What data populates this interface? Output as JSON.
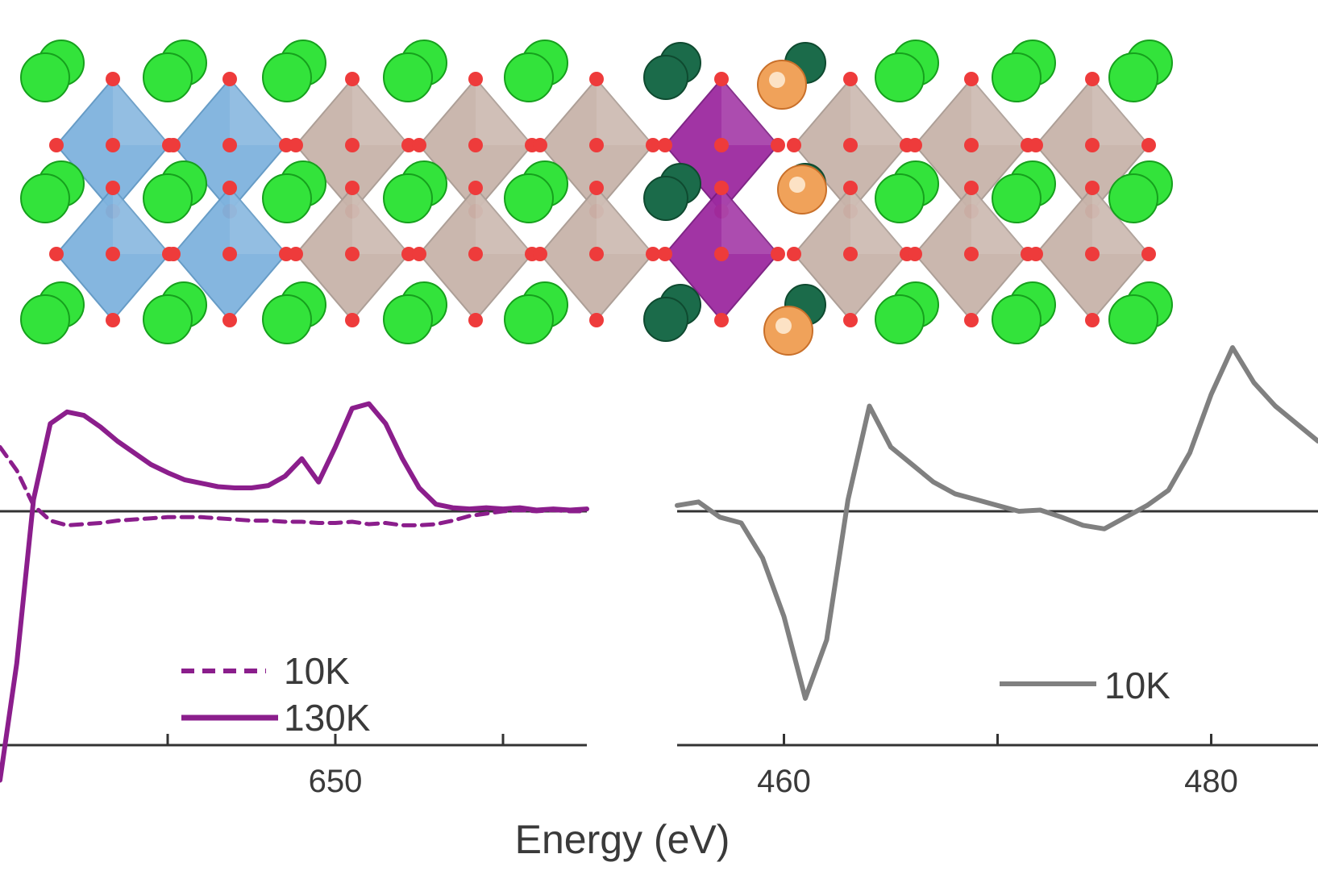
{
  "figure": {
    "colors": {
      "A_site_cation": "#33e33b",
      "A_site_cation_dark": "#1b6b4a",
      "interface_cation": "#f0a25a",
      "oxygen": "#ee3b3b",
      "octahedron_blue": "#7fb3de",
      "octahedron_gray": "#c8b4aa",
      "octahedron_purple": "#9c2aa0",
      "xas_purple": "#8b1e8c",
      "xas_gray": "#808080"
    },
    "structure": {
      "layers": [
        "blue",
        "blue",
        "gray",
        "gray",
        "gray",
        "purple",
        "gray",
        "gray",
        "gray"
      ]
    },
    "xlabel": "Energy (eV)"
  },
  "chart_data": [
    {
      "type": "line",
      "panel": "left",
      "xlim": [
        630,
        665
      ],
      "xticks": [
        640,
        650,
        660
      ],
      "xtick_labels": [
        "",
        "650",
        ""
      ],
      "series": [
        {
          "name": "10K",
          "style": "dashed",
          "color": "#8b1e8c",
          "x": [
            630,
            631,
            632,
            633,
            634,
            635,
            636,
            637,
            638,
            639,
            640,
            641,
            642,
            643,
            644,
            645,
            646,
            647,
            648,
            649,
            650,
            651,
            652,
            653,
            654,
            655,
            656,
            657,
            658,
            659,
            660,
            661,
            662,
            663,
            664,
            665
          ],
          "y": [
            0.55,
            0.35,
            0.05,
            -0.08,
            -0.12,
            -0.11,
            -0.1,
            -0.08,
            -0.07,
            -0.06,
            -0.05,
            -0.05,
            -0.05,
            -0.06,
            -0.07,
            -0.08,
            -0.08,
            -0.09,
            -0.09,
            -0.1,
            -0.1,
            -0.09,
            -0.11,
            -0.1,
            -0.12,
            -0.12,
            -0.11,
            -0.08,
            -0.04,
            -0.02,
            0.0,
            0.01,
            0.0,
            0.01,
            0.0,
            0.0
          ]
        },
        {
          "name": "130K",
          "style": "solid",
          "color": "#8b1e8c",
          "x": [
            630,
            631,
            632,
            633,
            634,
            635,
            636,
            637,
            638,
            639,
            640,
            641,
            642,
            643,
            644,
            645,
            646,
            647,
            648,
            649,
            650,
            651,
            652,
            653,
            654,
            655,
            656,
            657,
            658,
            659,
            660,
            661,
            662,
            663,
            664,
            665
          ],
          "y": [
            -2.3,
            -1.3,
            0.1,
            0.75,
            0.85,
            0.82,
            0.72,
            0.6,
            0.5,
            0.4,
            0.33,
            0.27,
            0.24,
            0.21,
            0.2,
            0.2,
            0.22,
            0.3,
            0.45,
            0.25,
            0.55,
            0.88,
            0.92,
            0.75,
            0.45,
            0.2,
            0.06,
            0.03,
            0.02,
            0.03,
            0.02,
            0.03,
            0.01,
            0.02,
            0.01,
            0.02
          ]
        }
      ]
    },
    {
      "type": "line",
      "panel": "right",
      "xlim": [
        455,
        485
      ],
      "xticks": [
        460,
        470,
        480
      ],
      "xtick_labels": [
        "460",
        "",
        "480"
      ],
      "series": [
        {
          "name": "10K",
          "style": "solid",
          "color": "#808080",
          "x": [
            455,
            456,
            457,
            458,
            459,
            460,
            461,
            462,
            463,
            464,
            465,
            466,
            467,
            468,
            469,
            470,
            471,
            472,
            473,
            474,
            475,
            476,
            477,
            478,
            479,
            480,
            481,
            482,
            483,
            484,
            485
          ],
          "y": [
            0.05,
            0.08,
            -0.05,
            -0.1,
            -0.4,
            -0.9,
            -1.6,
            -1.1,
            0.1,
            0.9,
            0.55,
            0.4,
            0.25,
            0.15,
            0.1,
            0.05,
            0.0,
            0.01,
            -0.05,
            -0.12,
            -0.15,
            -0.05,
            0.05,
            0.18,
            0.5,
            1.0,
            1.4,
            1.1,
            0.9,
            0.75,
            0.6
          ]
        }
      ]
    }
  ]
}
